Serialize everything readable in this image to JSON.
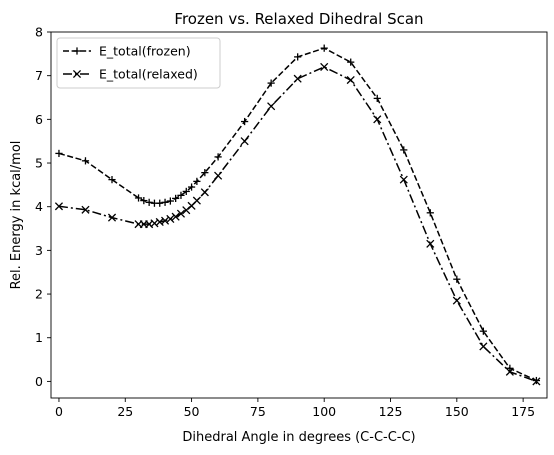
{
  "chart_data": {
    "type": "line",
    "title": "Frozen vs. Relaxed Dihedral Scan",
    "xlabel": "Dihedral Angle in degrees (C-C-C-C)",
    "ylabel": "Rel. Energy in kcal/mol",
    "xlim": [
      -3,
      184
    ],
    "ylim": [
      -0.38,
      8.0
    ],
    "xticks": [
      0,
      25,
      50,
      75,
      100,
      125,
      150,
      175
    ],
    "yticks": [
      0,
      1,
      2,
      3,
      4,
      5,
      6,
      7,
      8
    ],
    "grid": false,
    "legend_position": "top-left",
    "series": [
      {
        "name": "E_total(frozen)",
        "line_style": "dashed",
        "marker": "plus",
        "color": "#000000",
        "x": [
          0,
          10,
          20,
          30,
          32,
          34,
          36,
          38,
          40,
          42,
          44,
          46,
          48,
          50,
          52,
          55,
          60,
          70,
          80,
          90,
          100,
          110,
          120,
          130,
          140,
          150,
          160,
          170,
          180
        ],
        "y": [
          5.22,
          5.05,
          4.62,
          4.2,
          4.14,
          4.1,
          4.08,
          4.08,
          4.1,
          4.13,
          4.19,
          4.26,
          4.35,
          4.45,
          4.58,
          4.78,
          5.14,
          5.95,
          6.83,
          7.43,
          7.63,
          7.31,
          6.48,
          5.3,
          3.86,
          2.34,
          1.15,
          0.3,
          0.02
        ]
      },
      {
        "name": "E_total(relaxed)",
        "line_style": "dashdot",
        "marker": "x",
        "color": "#000000",
        "x": [
          0,
          10,
          20,
          30,
          32,
          34,
          36,
          38,
          40,
          42,
          44,
          46,
          48,
          50,
          52,
          55,
          60,
          70,
          80,
          90,
          100,
          110,
          120,
          130,
          140,
          150,
          160,
          170,
          180
        ],
        "y": [
          4.01,
          3.93,
          3.75,
          3.6,
          3.6,
          3.6,
          3.62,
          3.65,
          3.68,
          3.72,
          3.77,
          3.84,
          3.92,
          4.02,
          4.14,
          4.33,
          4.71,
          5.5,
          6.3,
          6.93,
          7.2,
          6.9,
          6.0,
          4.62,
          3.15,
          1.85,
          0.8,
          0.22,
          0.0
        ]
      }
    ]
  }
}
